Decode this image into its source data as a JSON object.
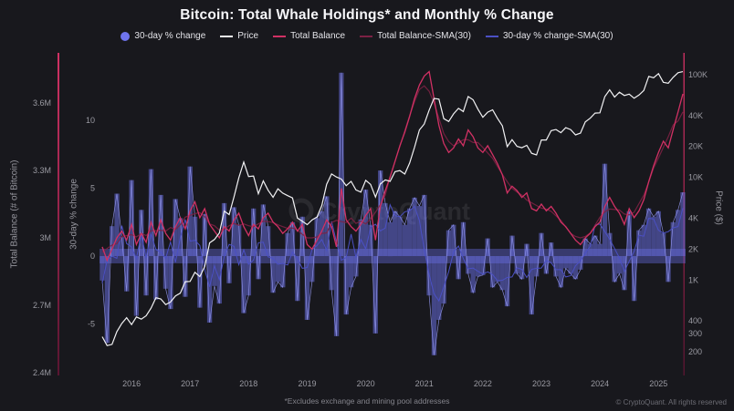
{
  "page": {
    "title": "Bitcoin: Total Whale Holdings* and Monthly % Change",
    "footnote": "*Excludes exchange and mining pool addresses",
    "copyright": "© CryptoQuant. All rights reserved",
    "watermark": "CryptoQuant"
  },
  "colors": {
    "background": "#18181d",
    "price": "#f2f2f4",
    "total_balance": "#d13164",
    "total_balance_sma": "#7c2144",
    "pct_change": "#6f74ee",
    "pct_change_sma": "#4b50c4",
    "axis_text": "#9a9aa2"
  },
  "legend": [
    {
      "label": "30-day % change",
      "marker": "circle",
      "color": "#6f74ee"
    },
    {
      "label": "Price",
      "marker": "line",
      "color": "#f2f2f4"
    },
    {
      "label": "Total Balance",
      "marker": "line",
      "color": "#d13164"
    },
    {
      "label": "Total Balance-SMA(30)",
      "marker": "line",
      "color": "#7c2144"
    },
    {
      "label": "30-day % change-SMA(30)",
      "marker": "line",
      "color": "#4b50c4"
    }
  ],
  "axes": {
    "left_balance": {
      "label": "Total Balance (# of Bitcoin)",
      "ticks": [
        "2.4M",
        "2.7M",
        "3M",
        "3.3M",
        "3.6M"
      ],
      "tick_values": [
        2.4,
        2.7,
        3.0,
        3.3,
        3.6
      ],
      "range": [
        2.4,
        3.82
      ],
      "scale": "linear"
    },
    "left_pct": {
      "label": "30-day % change",
      "ticks": [
        "-5",
        "0",
        "5",
        "10"
      ],
      "tick_values": [
        -5,
        0,
        5,
        10
      ],
      "range": [
        -8.8,
        15.0
      ],
      "scale": "linear"
    },
    "right_price": {
      "label": "Price ($)",
      "ticks": [
        "200",
        "300",
        "400",
        "1K",
        "2K",
        "4K",
        "10K",
        "20K",
        "40K",
        "100K"
      ],
      "tick_values": [
        200,
        300,
        400,
        1000,
        2000,
        4000,
        10000,
        20000,
        40000,
        100000
      ],
      "range": [
        160,
        120000
      ],
      "scale": "log"
    }
  },
  "chart_data": {
    "type": "mixed",
    "x_start": "2015-07",
    "x_freq": "monthly",
    "x_ticks": [
      {
        "label": "2016",
        "i": 6
      },
      {
        "label": "2017",
        "i": 18
      },
      {
        "label": "2018",
        "i": 30
      },
      {
        "label": "2019",
        "i": 42
      },
      {
        "label": "2020",
        "i": 54
      },
      {
        "label": "2021",
        "i": 66
      },
      {
        "label": "2022",
        "i": 78
      },
      {
        "label": "2023",
        "i": 90
      },
      {
        "label": "2024",
        "i": 102
      },
      {
        "label": "2025",
        "i": 114
      }
    ],
    "series": [
      {
        "name": "30-day % change",
        "type": "bar",
        "axis": "left_pct",
        "unit": "%",
        "color": "#6f74ee",
        "values": [
          -1.8,
          -6.4,
          2.2,
          4.6,
          1.4,
          -2.6,
          5.6,
          -4.4,
          3.4,
          -2.9,
          6.4,
          -3.2,
          4.5,
          -2.4,
          -3.9,
          4.2,
          2.8,
          -3.0,
          6.6,
          2.9,
          -3.8,
          3.1,
          -4.9,
          -2.2,
          -3.5,
          3.9,
          -2.0,
          3.6,
          2.3,
          -4.2,
          -2.9,
          3.5,
          -1.7,
          3.8,
          2.2,
          -2.7,
          -1.9,
          -2.3,
          1.7,
          2.5,
          -3.3,
          2.9,
          -4.7,
          -1.9,
          2.8,
          3.3,
          4.4,
          -2.5,
          -5.9,
          13.5,
          -4.3,
          -2.3,
          -1.5,
          2.7,
          4.9,
          2.3,
          -5.7,
          6.3,
          3.9,
          2.5,
          3.3,
          2.9,
          2.3,
          3.5,
          4.3,
          3.7,
          4.5,
          -2.9,
          -7.3,
          -4.7,
          -3.5,
          1.9,
          2.3,
          -1.7,
          2.5,
          -1.3,
          -2.7,
          -1.5,
          -1.4,
          1.3,
          -2.3,
          -1.9,
          -2.5,
          -3.7,
          1.5,
          -1.3,
          -1.7,
          0.9,
          -4.3,
          -1.5,
          1.7,
          -1.3,
          1.0,
          -1.5,
          -2.3,
          -0.9,
          -1.3,
          -1.7,
          -1.0,
          1.3,
          0.9,
          1.5,
          0.9,
          6.8,
          1.7,
          -1.9,
          -1.3,
          -2.5,
          3.3,
          -3.3,
          1.9,
          2.3,
          3.5,
          2.9,
          3.3,
          1.7,
          -1.9,
          2.5,
          3.4,
          4.7
        ]
      },
      {
        "name": "30-day % change-SMA(30)",
        "type": "line",
        "axis": "left_pct",
        "color": "#4b50c4",
        "derived_from": "30-day % change",
        "derivation": "SMA(30)"
      },
      {
        "name": "Total Balance",
        "type": "line",
        "axis": "left_balance",
        "unit": "M BTC",
        "color": "#d13164",
        "values": [
          2.96,
          2.9,
          2.95,
          3.0,
          3.03,
          2.99,
          3.06,
          2.97,
          3.02,
          2.98,
          3.07,
          3.01,
          3.08,
          3.02,
          2.99,
          3.05,
          3.09,
          3.04,
          3.12,
          3.16,
          3.09,
          3.13,
          3.06,
          3.03,
          3.0,
          3.05,
          3.03,
          3.08,
          3.11,
          3.05,
          3.01,
          3.06,
          3.04,
          3.09,
          3.11,
          3.07,
          3.05,
          3.02,
          3.04,
          3.07,
          3.03,
          3.06,
          2.97,
          2.95,
          2.99,
          3.03,
          3.08,
          3.05,
          2.96,
          3.22,
          3.08,
          3.05,
          3.03,
          3.06,
          3.1,
          3.13,
          2.99,
          3.14,
          3.21,
          3.27,
          3.34,
          3.41,
          3.47,
          3.54,
          3.62,
          3.68,
          3.72,
          3.74,
          3.62,
          3.5,
          3.42,
          3.38,
          3.4,
          3.44,
          3.41,
          3.48,
          3.45,
          3.4,
          3.38,
          3.41,
          3.37,
          3.33,
          3.28,
          3.2,
          3.23,
          3.21,
          3.18,
          3.2,
          3.13,
          3.12,
          3.15,
          3.12,
          3.14,
          3.11,
          3.07,
          3.05,
          3.02,
          2.99,
          2.97,
          3.0,
          3.02,
          3.05,
          3.07,
          3.14,
          3.18,
          3.14,
          3.11,
          3.06,
          3.13,
          3.09,
          3.12,
          3.17,
          3.25,
          3.32,
          3.38,
          3.43,
          3.4,
          3.48,
          3.56,
          3.64
        ]
      },
      {
        "name": "Total Balance-SMA(30)",
        "type": "line",
        "axis": "left_balance",
        "color": "#7c2144",
        "derived_from": "Total Balance",
        "derivation": "SMA(30)"
      },
      {
        "name": "Price",
        "type": "line",
        "axis": "right_price",
        "unit": "USD",
        "color": "#f2f2f4",
        "values": [
          280,
          230,
          236,
          314,
          377,
          430,
          368,
          437,
          416,
          448,
          531,
          672,
          655,
          575,
          610,
          700,
          745,
          963,
          970,
          1190,
          1080,
          1350,
          2300,
          2480,
          2875,
          4700,
          4340,
          6450,
          9900,
          14100,
          10200,
          10300,
          6930,
          9240,
          7490,
          6400,
          7730,
          7030,
          6630,
          6300,
          4020,
          3740,
          3460,
          3850,
          4100,
          5320,
          8560,
          10800,
          10080,
          9630,
          8300,
          9150,
          7550,
          7190,
          9350,
          8550,
          6440,
          8620,
          9450,
          9140,
          11350,
          11650,
          10780,
          13800,
          19700,
          28990,
          33110,
          45240,
          58800,
          57750,
          37330,
          35040,
          41550,
          47010,
          43790,
          61300,
          57000,
          46200,
          38480,
          43190,
          45540,
          37630,
          31790,
          19925,
          23290,
          20050,
          19430,
          20490,
          17160,
          16540,
          23130,
          23140,
          28470,
          29250,
          27220,
          30480,
          29230,
          25930,
          26970,
          34660,
          37710,
          42270,
          42580,
          61200,
          71330,
          60640,
          67530,
          62680,
          64620,
          58970,
          63330,
          70220,
          96450,
          93430,
          102400,
          84350,
          82550,
          94210,
          104600,
          107100
        ]
      }
    ]
  }
}
